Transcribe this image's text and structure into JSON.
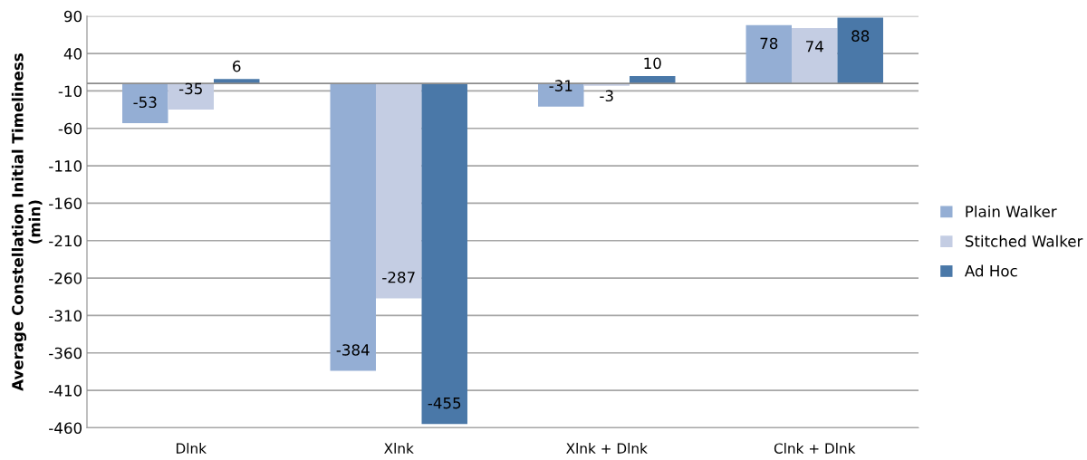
{
  "chart_data": {
    "type": "bar",
    "ylabel": "Average Constellation Initial Timeliness\n(min)",
    "categories": [
      "Dlnk",
      "Xlnk",
      "Xlnk + Dlnk",
      "Clnk + Dlnk"
    ],
    "series": [
      {
        "name": "Plain Walker",
        "color": "#94aed4",
        "values": [
          -53,
          -384,
          -31,
          78
        ]
      },
      {
        "name": "Stitched Walker",
        "color": "#c4cde3",
        "values": [
          -35,
          -287,
          -3,
          74
        ]
      },
      {
        "name": "Ad Hoc",
        "color": "#4a78a8",
        "values": [
          6,
          -455,
          10,
          88
        ]
      }
    ],
    "ylim": [
      -460,
      90
    ],
    "yticks": [
      -460,
      -410,
      -360,
      -310,
      -260,
      -210,
      -160,
      -110,
      -60,
      -10,
      40,
      90
    ],
    "grid": "y",
    "legend": "right",
    "data_labels": true
  }
}
